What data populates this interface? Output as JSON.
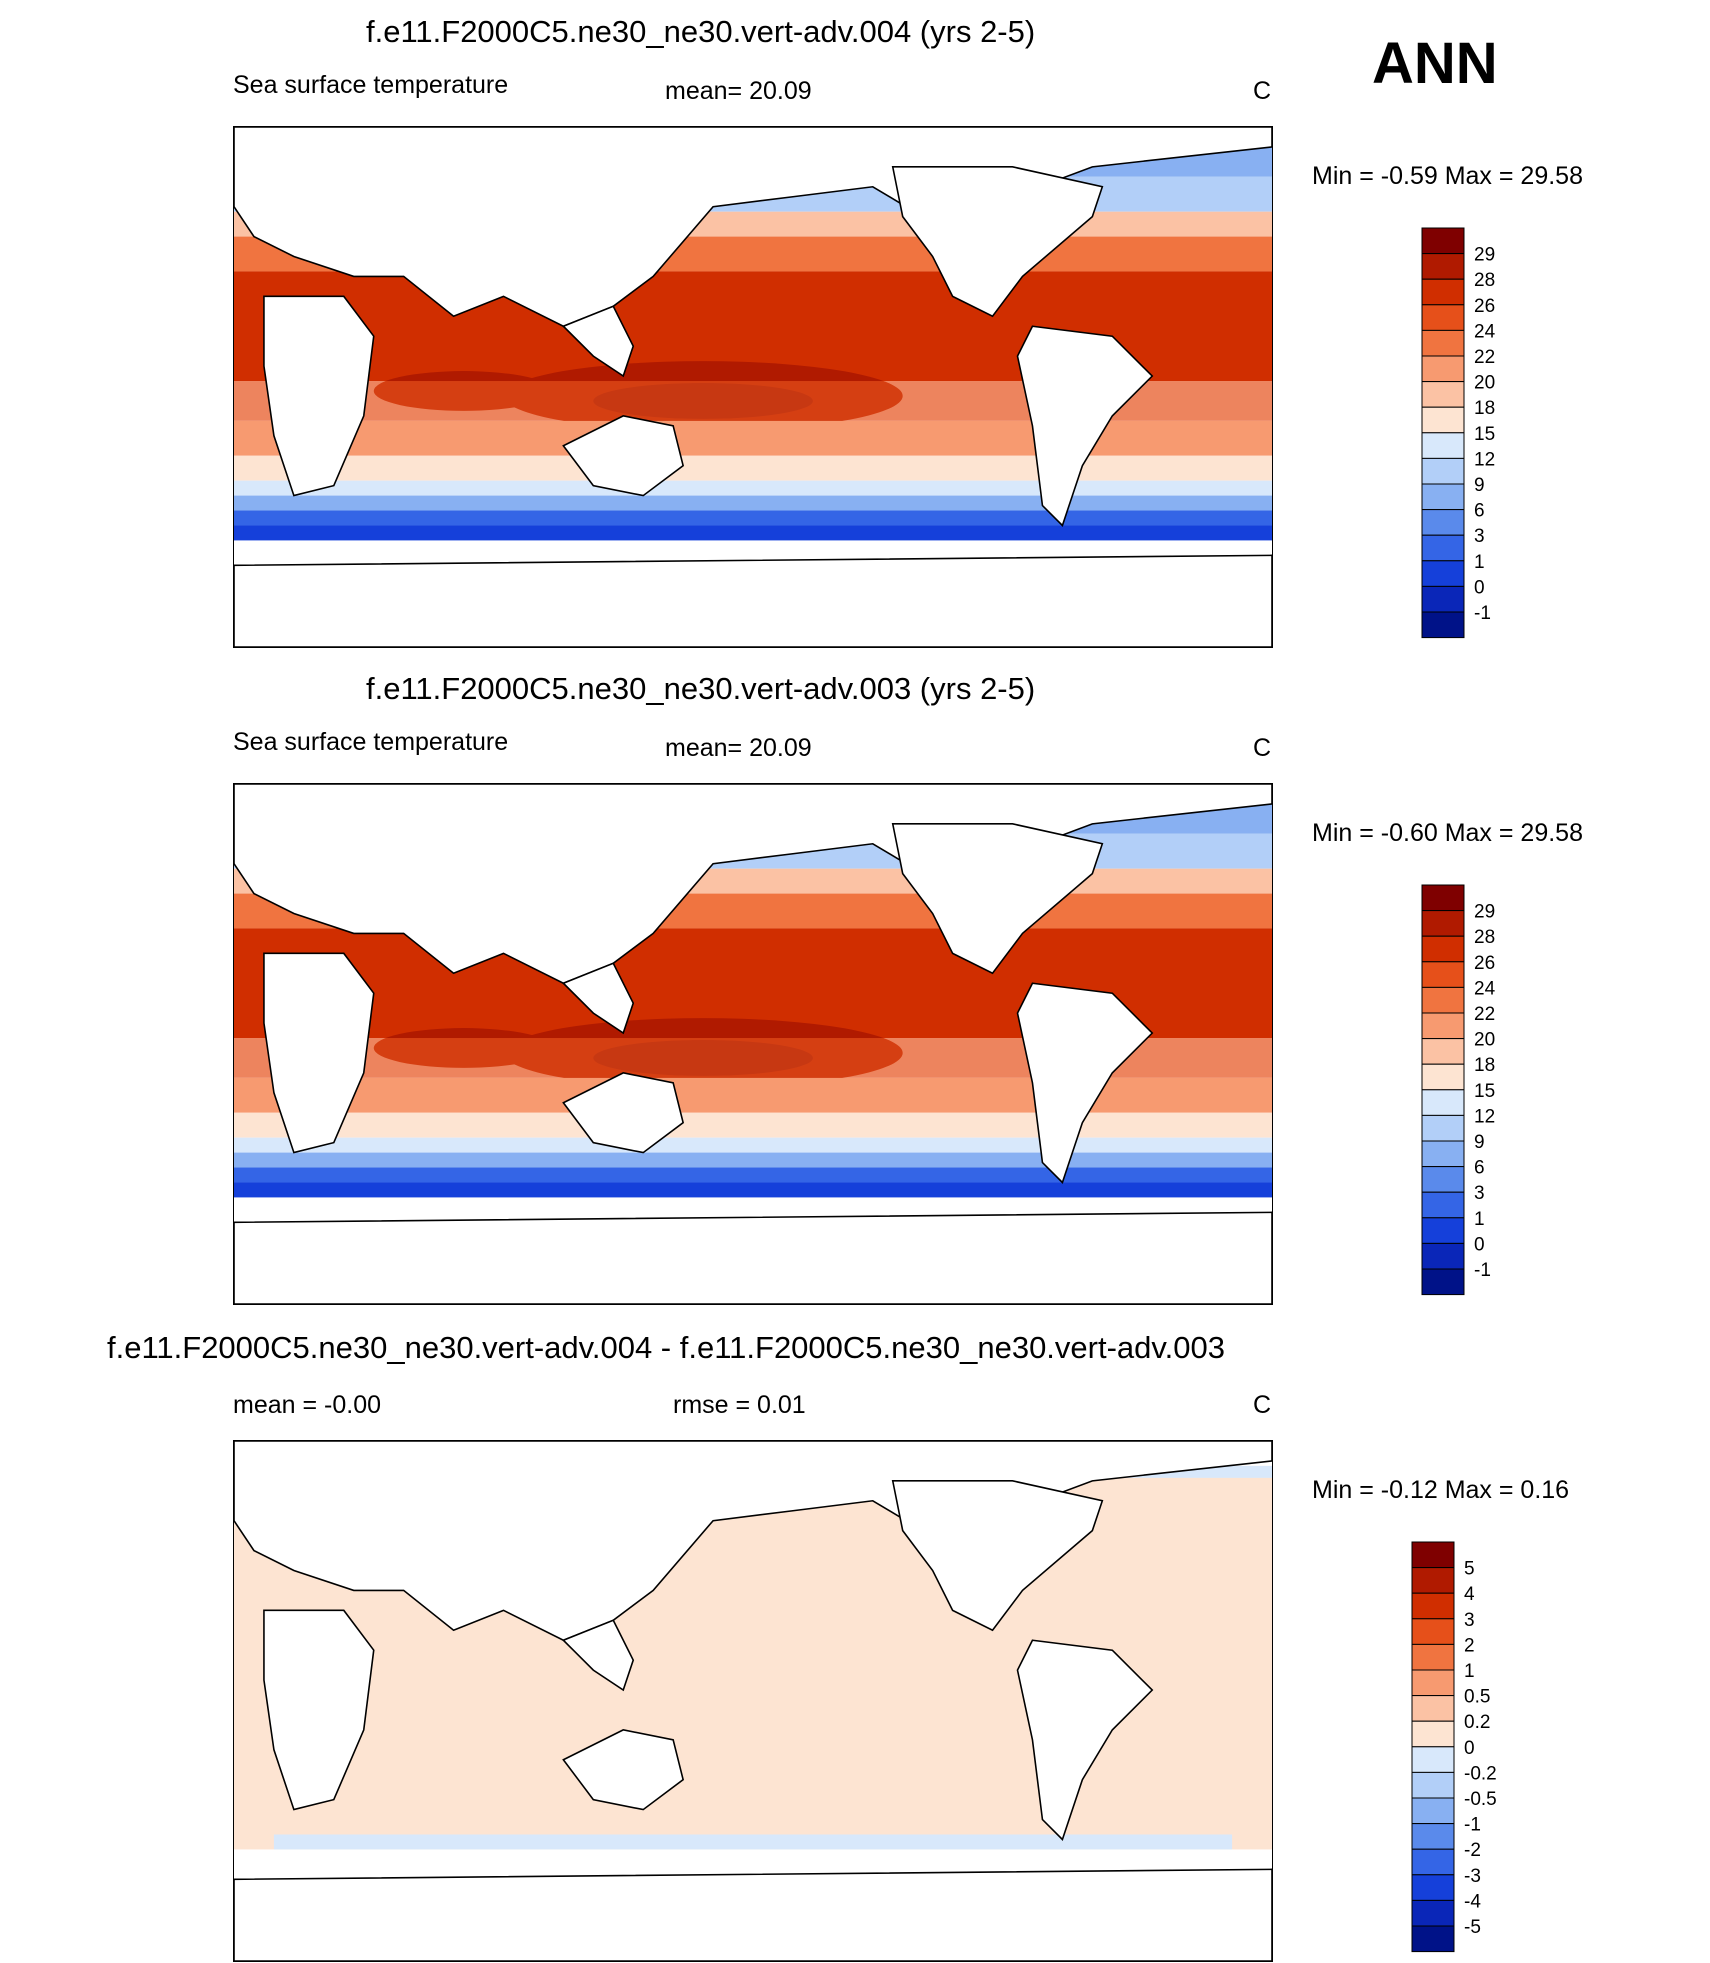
{
  "season_label": "ANN",
  "panels": [
    {
      "title": "f.e11.F2000C5.ne30_ne30.vert-adv.004 (yrs 2-5)",
      "left_label": "Sea surface temperature",
      "center_label": "mean=  20.09",
      "units": "C",
      "minmax": "Min =  -0.59 Max =  29.58",
      "colorbar": {
        "labels": [
          "29",
          "28",
          "26",
          "24",
          "22",
          "20",
          "18",
          "15",
          "12",
          "9",
          "6",
          "3",
          "1",
          "0",
          "-1"
        ],
        "colors": [
          "#7f0000",
          "#b01a00",
          "#d02e00",
          "#e6501a",
          "#f07440",
          "#f79a70",
          "#fbc2a4",
          "#fde4d2",
          "#d8e8fb",
          "#b2cff8",
          "#88b0f2",
          "#5a8aeb",
          "#3465e6",
          "#1540da",
          "#0a26b8",
          "#001288"
        ]
      }
    },
    {
      "title": "f.e11.F2000C5.ne30_ne30.vert-adv.003 (yrs 2-5)",
      "left_label": "Sea surface temperature",
      "center_label": "mean=  20.09",
      "units": "C",
      "minmax": "Min =  -0.60 Max =  29.58",
      "colorbar": {
        "labels": [
          "29",
          "28",
          "26",
          "24",
          "22",
          "20",
          "18",
          "15",
          "12",
          "9",
          "6",
          "3",
          "1",
          "0",
          "-1"
        ],
        "colors": [
          "#7f0000",
          "#b01a00",
          "#d02e00",
          "#e6501a",
          "#f07440",
          "#f79a70",
          "#fbc2a4",
          "#fde4d2",
          "#d8e8fb",
          "#b2cff8",
          "#88b0f2",
          "#5a8aeb",
          "#3465e6",
          "#1540da",
          "#0a26b8",
          "#001288"
        ]
      }
    },
    {
      "title": "f.e11.F2000C5.ne30_ne30.vert-adv.004 - f.e11.F2000C5.ne30_ne30.vert-adv.003",
      "left_label": "mean =  -0.00",
      "center_label": "rmse =   0.01",
      "units": "C",
      "minmax": "Min =  -0.12 Max =   0.16",
      "colorbar": {
        "labels": [
          "5",
          "4",
          "3",
          "2",
          "1",
          "0.5",
          "0.2",
          "0",
          "-0.2",
          "-0.5",
          "-1",
          "-2",
          "-3",
          "-4",
          "-5"
        ],
        "colors": [
          "#7f0000",
          "#b01a00",
          "#d02e00",
          "#e6501a",
          "#f07440",
          "#f79a70",
          "#fbc2a4",
          "#fde4d2",
          "#d8e8fb",
          "#b2cff8",
          "#88b0f2",
          "#5a8aeb",
          "#3465e6",
          "#1540da",
          "#0a26b8",
          "#001288"
        ]
      }
    }
  ]
}
